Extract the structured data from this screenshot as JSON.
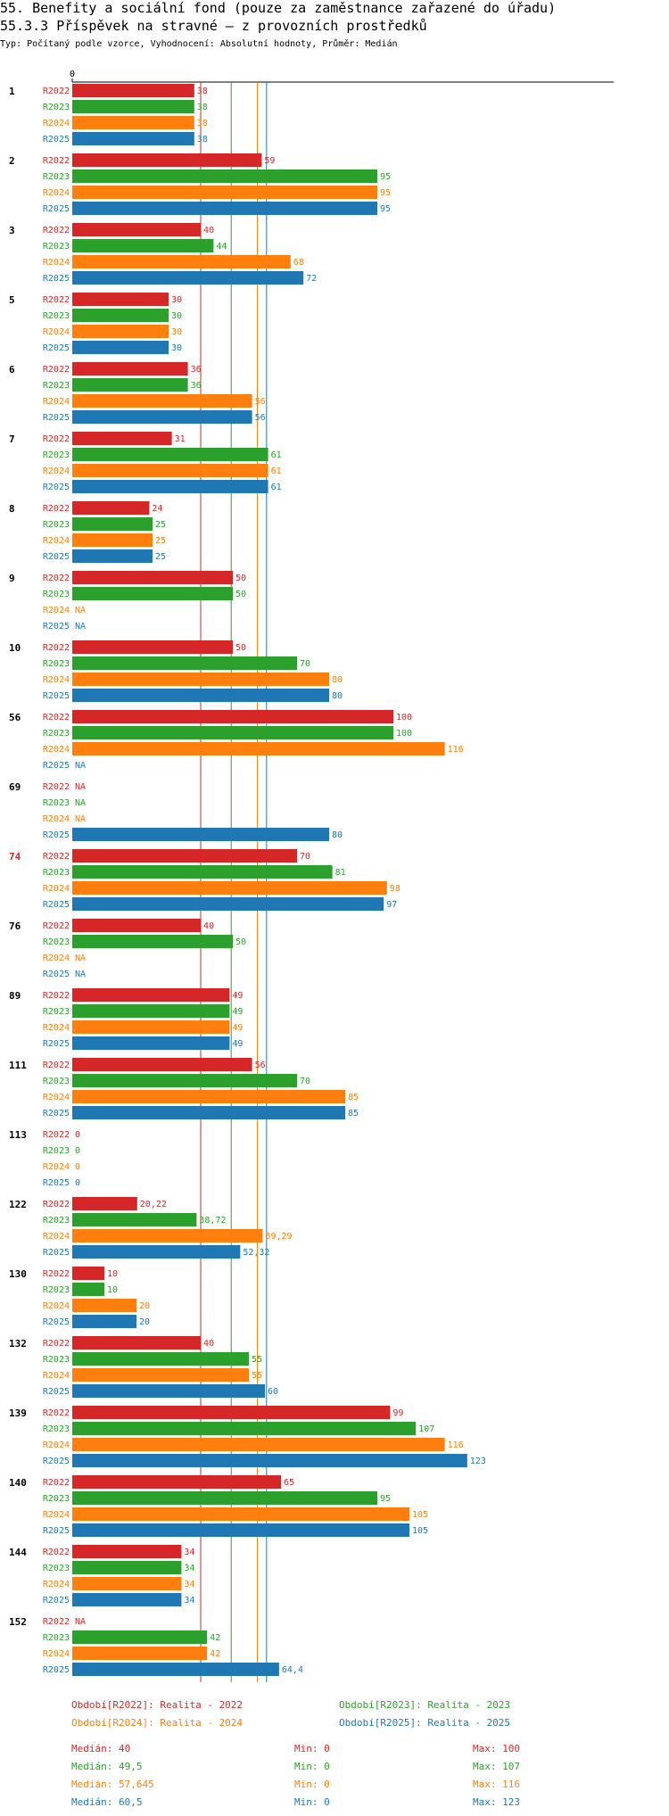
{
  "header": {
    "title": "55. Benefity a sociální fond (pouze za zaměstnance zařazené do úřadu)",
    "subtitle": "55.3.3 Příspěvek na stravné – z provozních prostředků",
    "meta": "Typ: Počítaný podle vzorce, Vyhodnocení: Absolutní hodnoty, Průměr: Medián"
  },
  "colors": {
    "R2022": "#d62728",
    "R2023": "#2ca02c",
    "R2024": "#ff7f0e",
    "R2025": "#1f77b4",
    "highlight_group": "#d62728"
  },
  "chart_data": {
    "type": "bar",
    "orientation": "horizontal",
    "x_axis_zero_label": "0",
    "series_names": [
      "R2022",
      "R2023",
      "R2024",
      "R2025"
    ],
    "na_label": "NA",
    "groups": [
      {
        "id": "1",
        "values": [
          "38",
          "38",
          "38",
          "38"
        ]
      },
      {
        "id": "2",
        "values": [
          "59",
          "95",
          "95",
          "95"
        ]
      },
      {
        "id": "3",
        "values": [
          "40",
          "44",
          "68",
          "72"
        ]
      },
      {
        "id": "5",
        "values": [
          "30",
          "30",
          "30",
          "30"
        ]
      },
      {
        "id": "6",
        "values": [
          "36",
          "36",
          "56",
          "56"
        ]
      },
      {
        "id": "7",
        "values": [
          "31",
          "61",
          "61",
          "61"
        ]
      },
      {
        "id": "8",
        "values": [
          "24",
          "25",
          "25",
          "25"
        ]
      },
      {
        "id": "9",
        "values": [
          "50",
          "50",
          null,
          null
        ]
      },
      {
        "id": "10",
        "values": [
          "50",
          "70",
          "80",
          "80"
        ]
      },
      {
        "id": "56",
        "values": [
          "100",
          "100",
          "116",
          null
        ]
      },
      {
        "id": "69",
        "values": [
          null,
          null,
          null,
          "80"
        ]
      },
      {
        "id": "74",
        "values": [
          "70",
          "81",
          "98",
          "97"
        ],
        "highlight": true
      },
      {
        "id": "76",
        "values": [
          "40",
          "50",
          null,
          null
        ]
      },
      {
        "id": "89",
        "values": [
          "49",
          "49",
          "49",
          "49"
        ]
      },
      {
        "id": "111",
        "values": [
          "56",
          "70",
          "85",
          "85"
        ]
      },
      {
        "id": "113",
        "values": [
          "0",
          "0",
          "0",
          "0"
        ]
      },
      {
        "id": "122",
        "values": [
          "20,22",
          "38,72",
          "59,29",
          "52,32"
        ]
      },
      {
        "id": "130",
        "values": [
          "10",
          "10",
          "20",
          "20"
        ]
      },
      {
        "id": "132",
        "values": [
          "40",
          "55",
          "55",
          "60"
        ]
      },
      {
        "id": "139",
        "values": [
          "99",
          "107",
          "116",
          "123"
        ]
      },
      {
        "id": "140",
        "values": [
          "65",
          "95",
          "105",
          "105"
        ]
      },
      {
        "id": "144",
        "values": [
          "34",
          "34",
          "34",
          "34"
        ]
      },
      {
        "id": "152",
        "values": [
          null,
          "42",
          "42",
          "64,4"
        ]
      }
    ],
    "median_lines": [
      40,
      49.5,
      57.645,
      60.5
    ]
  },
  "legend": [
    "Období[R2022]: Realita - 2022",
    "Období[R2023]: Realita - 2023",
    "Období[R2024]: Realita - 2024",
    "Období[R2025]: Realita - 2025"
  ],
  "stats": [
    {
      "median": "Medián: 40",
      "min": "Min: 0",
      "max": "Max: 100"
    },
    {
      "median": "Medián: 49,5",
      "min": "Min: 0",
      "max": "Max: 107"
    },
    {
      "median": "Medián: 57,645",
      "min": "Min: 0",
      "max": "Max: 116"
    },
    {
      "median": "Medián: 60,5",
      "min": "Min: 0",
      "max": "Max: 123"
    }
  ]
}
